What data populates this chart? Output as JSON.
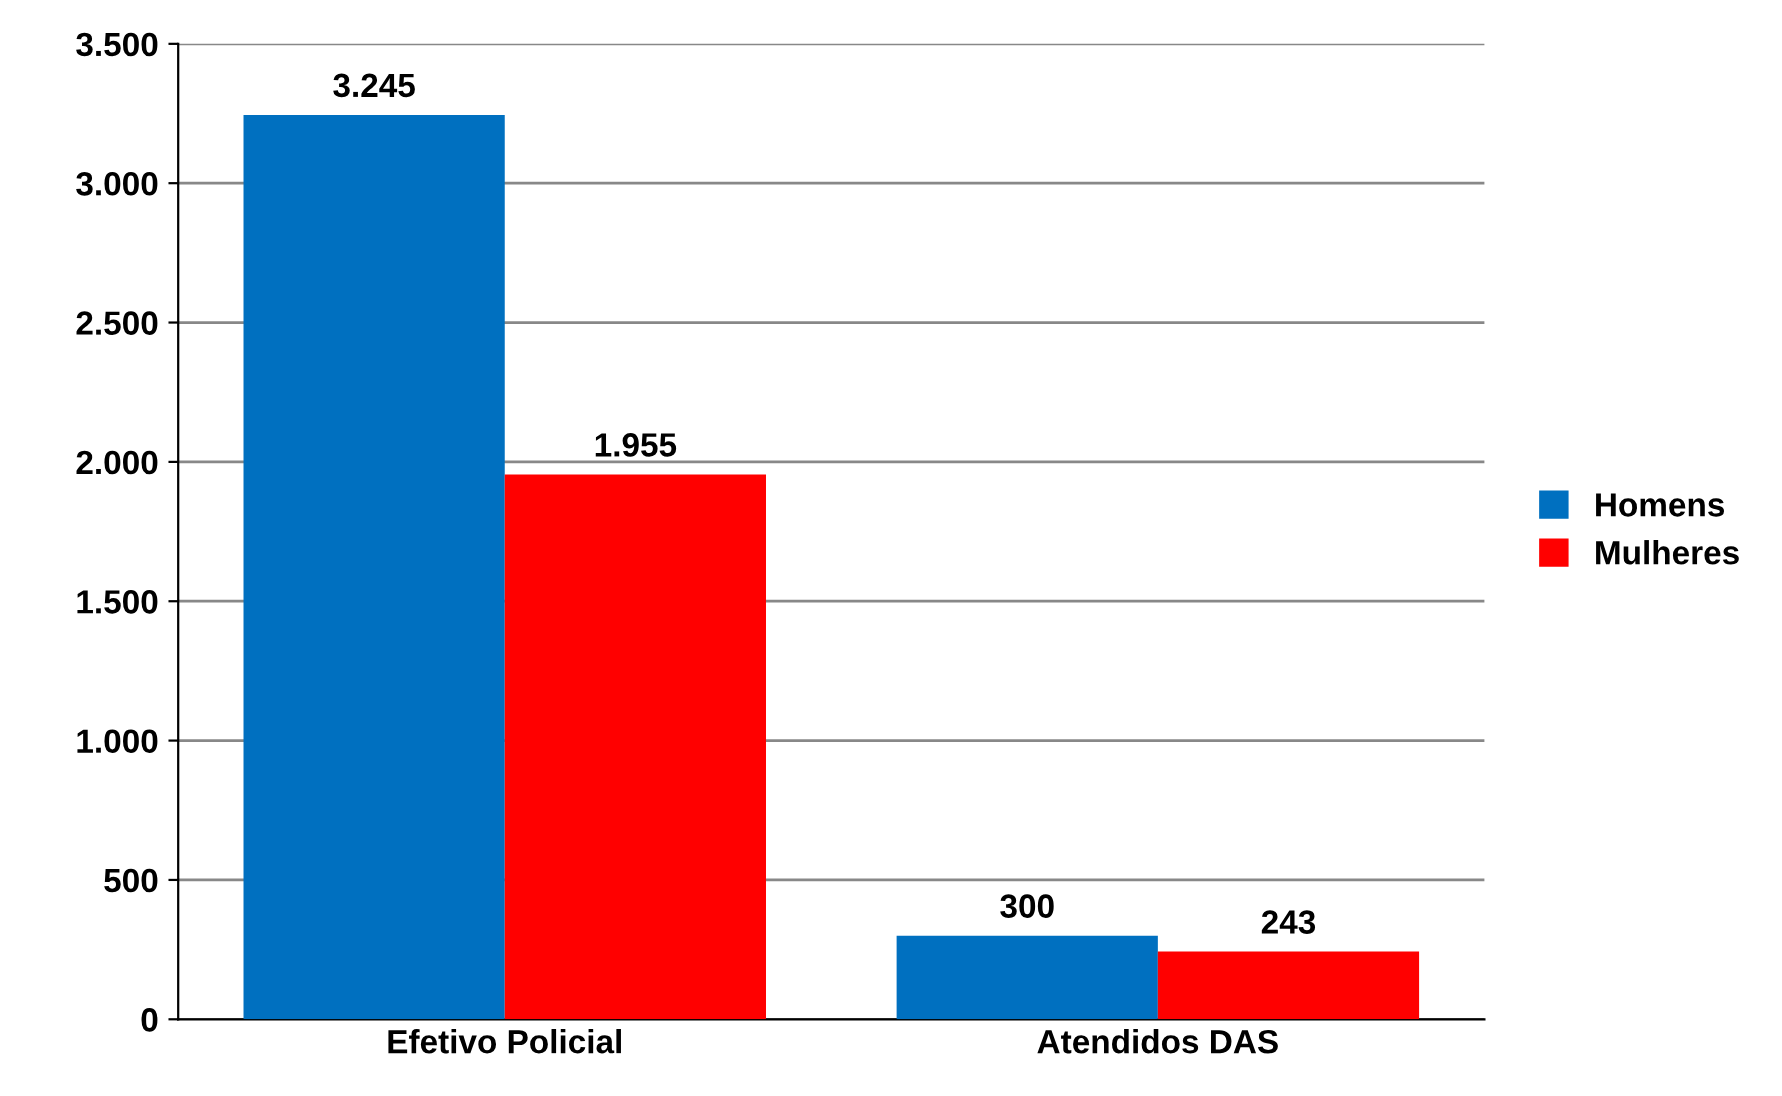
{
  "chart_data": {
    "type": "bar",
    "categories": [
      "Efetivo Policial",
      "Atendidos DAS"
    ],
    "series": [
      {
        "name": "Homens",
        "color": "#0070c0",
        "values": [
          3245,
          300
        ],
        "value_labels": [
          "3.245",
          "300"
        ]
      },
      {
        "name": "Mulheres",
        "color": "#ff0000",
        "values": [
          1955,
          243
        ],
        "value_labels": [
          "1.955",
          "243"
        ]
      }
    ],
    "ylim": [
      0,
      3500
    ],
    "yticks": [
      {
        "value": 0,
        "label": "0"
      },
      {
        "value": 500,
        "label": "500"
      },
      {
        "value": 1000,
        "label": "1.000"
      },
      {
        "value": 1500,
        "label": "1.500"
      },
      {
        "value": 2000,
        "label": "2.000"
      },
      {
        "value": 2500,
        "label": "2.500"
      },
      {
        "value": 3000,
        "label": "3.000"
      },
      {
        "value": 3500,
        "label": "3.500"
      }
    ],
    "grid": "y",
    "legend": "right"
  }
}
